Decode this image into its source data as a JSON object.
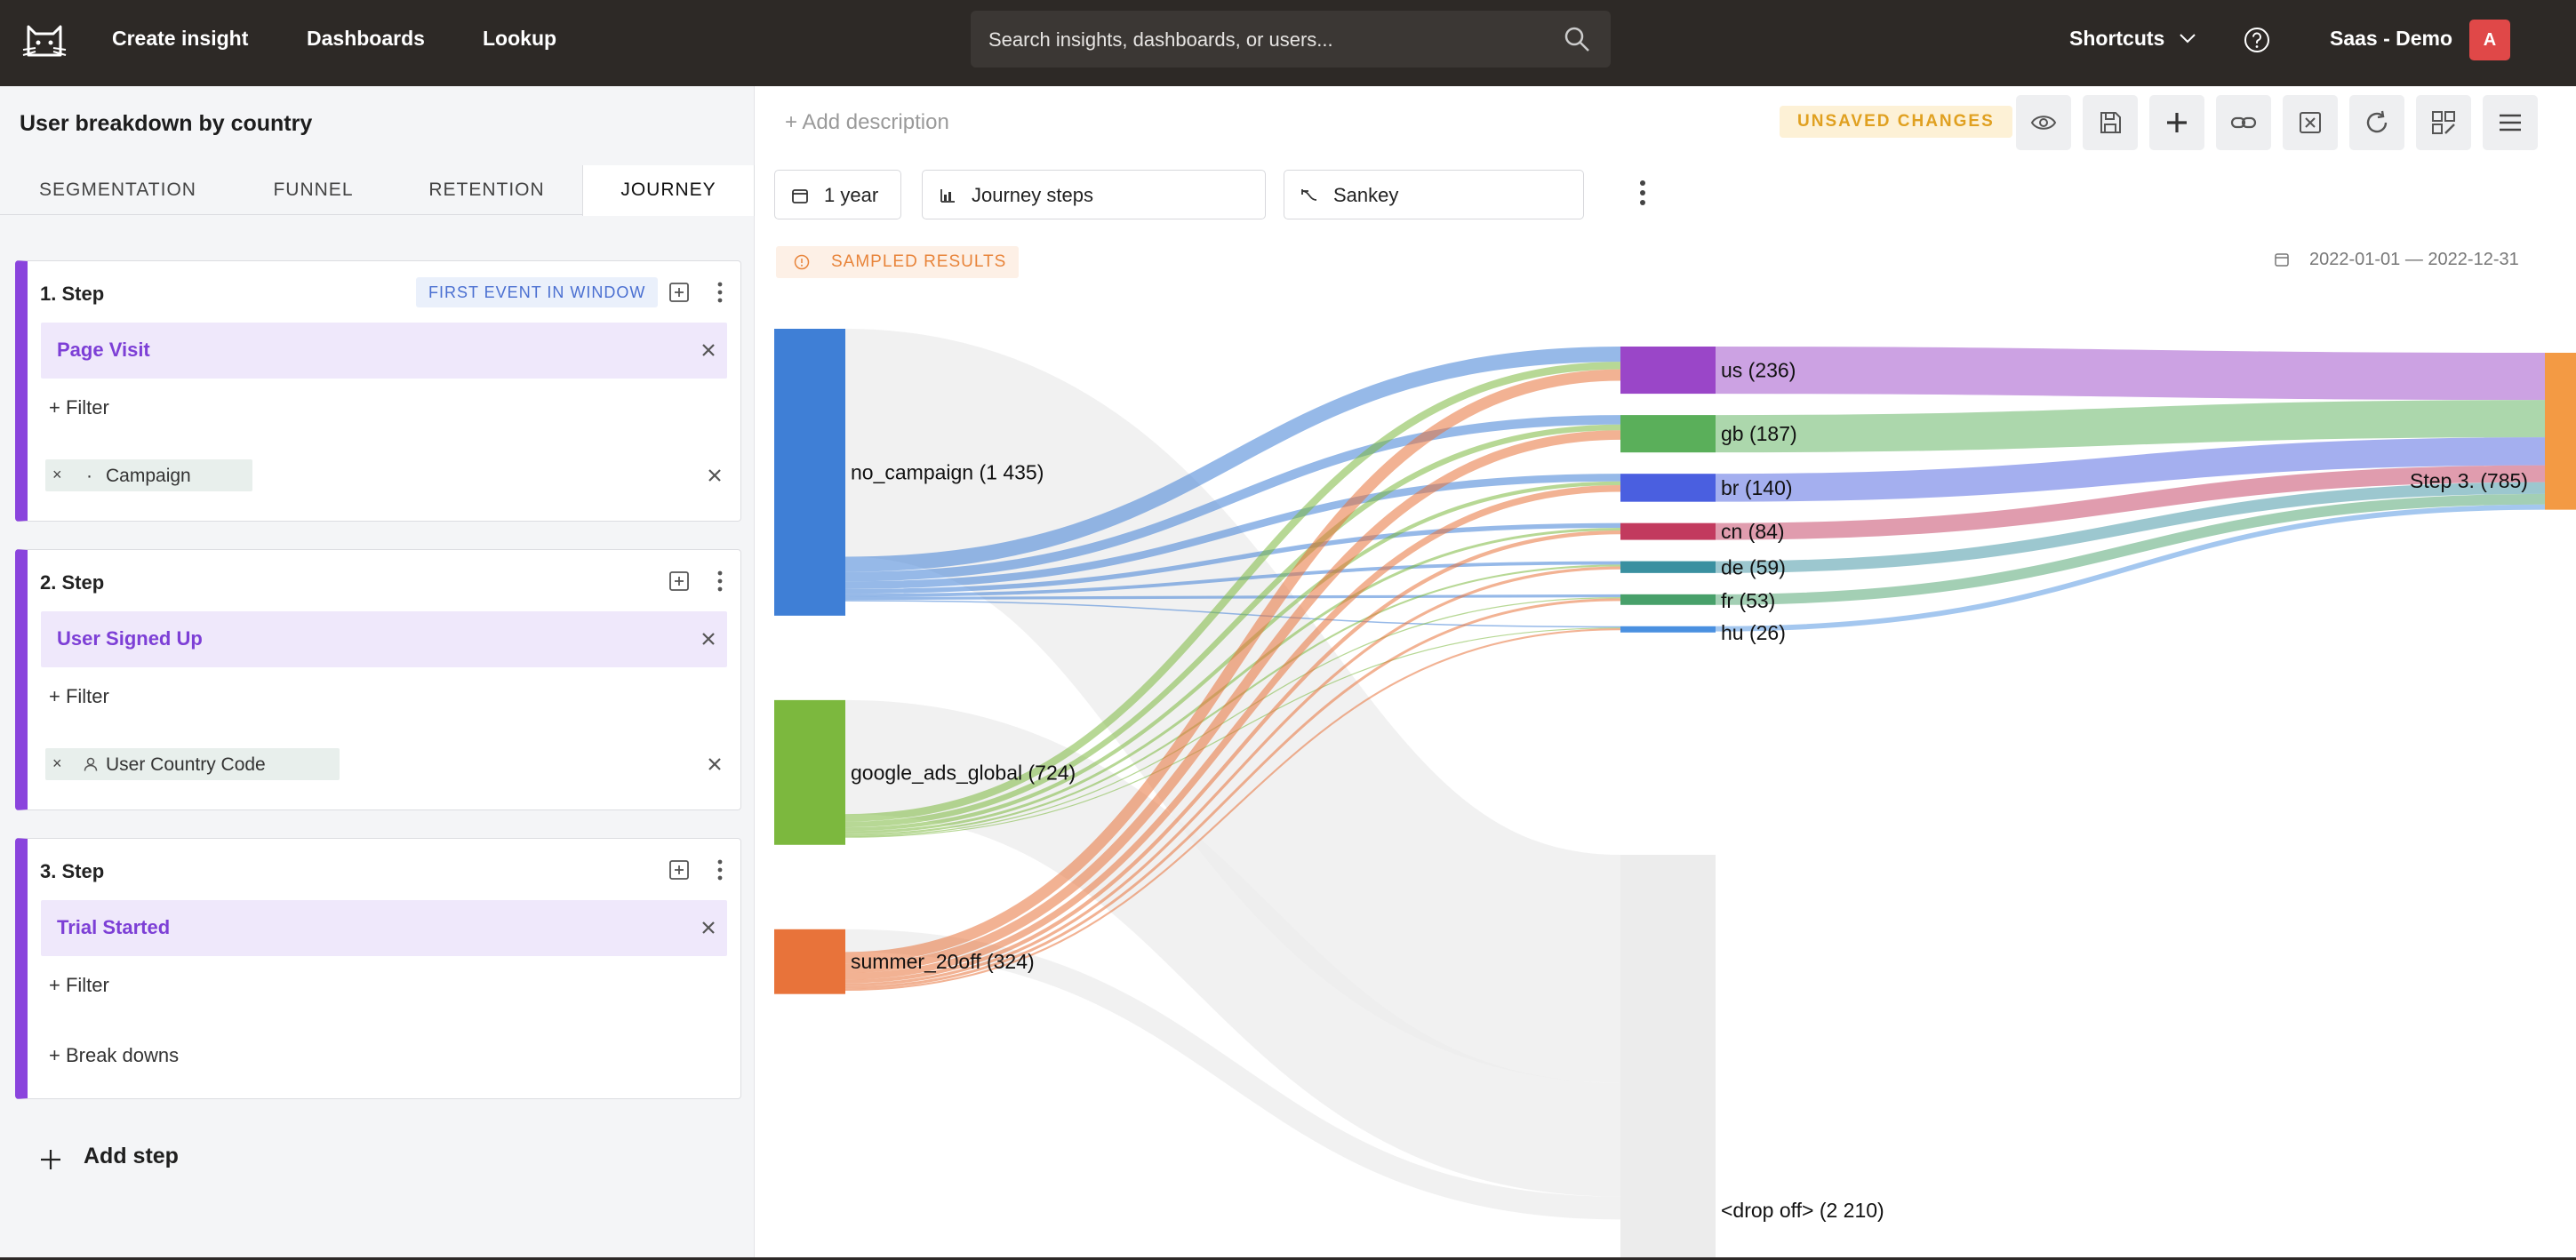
{
  "topbar": {
    "nav": [
      "Create insight",
      "Dashboards",
      "Lookup"
    ],
    "search_placeholder": "Search insights, dashboards, or users...",
    "shortcuts": "Shortcuts",
    "org": "Saas - Demo",
    "avatar": "A"
  },
  "insight": {
    "title": "User breakdown by country",
    "add_description": "+ Add description",
    "unsaved": "UNSAVED CHANGES"
  },
  "tabs": [
    "SEGMENTATION",
    "FUNNEL",
    "RETENTION",
    "JOURNEY"
  ],
  "active_tab": "JOURNEY",
  "steps": [
    {
      "title": "1.  Step",
      "badge": "FIRST EVENT IN WINDOW",
      "event": "Page Visit",
      "filter": "+ Filter",
      "breakdown": "Campaign",
      "breakdown_icon": "dot-icon"
    },
    {
      "title": "2.  Step",
      "event": "User Signed Up",
      "filter": "+ Filter",
      "breakdown": "User Country Code",
      "breakdown_icon": "user-icon"
    },
    {
      "title": "3.  Step",
      "event": "Trial Started",
      "filter": "+ Filter",
      "breakdowns_link": "+ Break downs"
    }
  ],
  "add_step": "Add step",
  "controls": {
    "period": "1 year",
    "view": "Journey steps",
    "chart": "Sankey"
  },
  "sampled": "SAMPLED RESULTS",
  "date_range": "2022-01-01 — 2022-12-31",
  "colors": {
    "accent": "#8a44dd",
    "no_campaign": "#3f7fd6",
    "google_ads_global": "#7cb83e",
    "summer_20off": "#e8733a",
    "us": "#9a46c8",
    "gb": "#5aaf5a",
    "br": "#4a5fe0",
    "cn": "#c23a5e",
    "de": "#3a90a0",
    "fr": "#48a06a",
    "hu": "#4a90e0",
    "step3": "#f39a44",
    "dropoff": "#ececec"
  },
  "chart_data": {
    "type": "sankey",
    "columns": [
      [
        {
          "id": "no_campaign",
          "label": "no_campaign (1 435)",
          "value": 1435
        },
        {
          "id": "google_ads_global",
          "label": "google_ads_global (724)",
          "value": 724
        },
        {
          "id": "summer_20off",
          "label": "summer_20off (324)",
          "value": 324
        }
      ],
      [
        {
          "id": "us",
          "label": "us (236)",
          "value": 236
        },
        {
          "id": "gb",
          "label": "gb (187)",
          "value": 187
        },
        {
          "id": "br",
          "label": "br (140)",
          "value": 140
        },
        {
          "id": "cn",
          "label": "cn (84)",
          "value": 84
        },
        {
          "id": "de",
          "label": "de (59)",
          "value": 59
        },
        {
          "id": "fr",
          "label": "fr (53)",
          "value": 53
        },
        {
          "id": "hu",
          "label": "hu (26)",
          "value": 26
        },
        {
          "id": "dropoff",
          "label": "<drop off> (2 210)",
          "value": 2210
        }
      ],
      [
        {
          "id": "step3",
          "label": "Step 3. (785)",
          "value": 785
        }
      ]
    ],
    "links": [
      {
        "source": "no_campaign",
        "target": "dropoff",
        "value": 1200
      },
      {
        "source": "no_campaign",
        "target": "us",
        "value": 80
      },
      {
        "source": "no_campaign",
        "target": "gb",
        "value": 50
      },
      {
        "source": "no_campaign",
        "target": "br",
        "value": 40
      },
      {
        "source": "no_campaign",
        "target": "cn",
        "value": 25
      },
      {
        "source": "no_campaign",
        "target": "de",
        "value": 18
      },
      {
        "source": "no_campaign",
        "target": "fr",
        "value": 15
      },
      {
        "source": "no_campaign",
        "target": "hu",
        "value": 7
      },
      {
        "source": "google_ads_global",
        "target": "dropoff",
        "value": 600
      },
      {
        "source": "google_ads_global",
        "target": "us",
        "value": 40
      },
      {
        "source": "google_ads_global",
        "target": "gb",
        "value": 30
      },
      {
        "source": "google_ads_global",
        "target": "br",
        "value": 20
      },
      {
        "source": "google_ads_global",
        "target": "cn",
        "value": 14
      },
      {
        "source": "google_ads_global",
        "target": "de",
        "value": 10
      },
      {
        "source": "google_ads_global",
        "target": "fr",
        "value": 6
      },
      {
        "source": "google_ads_global",
        "target": "hu",
        "value": 4
      },
      {
        "source": "summer_20off",
        "target": "dropoff",
        "value": 120
      },
      {
        "source": "summer_20off",
        "target": "us",
        "value": 60
      },
      {
        "source": "summer_20off",
        "target": "gb",
        "value": 50
      },
      {
        "source": "summer_20off",
        "target": "br",
        "value": 35
      },
      {
        "source": "summer_20off",
        "target": "cn",
        "value": 20
      },
      {
        "source": "summer_20off",
        "target": "de",
        "value": 15
      },
      {
        "source": "summer_20off",
        "target": "fr",
        "value": 14
      },
      {
        "source": "summer_20off",
        "target": "hu",
        "value": 10
      },
      {
        "source": "us",
        "target": "step3",
        "value": 236
      },
      {
        "source": "gb",
        "target": "step3",
        "value": 187
      },
      {
        "source": "br",
        "target": "step3",
        "value": 140
      },
      {
        "source": "cn",
        "target": "step3",
        "value": 84
      },
      {
        "source": "de",
        "target": "step3",
        "value": 59
      },
      {
        "source": "fr",
        "target": "step3",
        "value": 53
      },
      {
        "source": "hu",
        "target": "step3",
        "value": 26
      }
    ]
  }
}
